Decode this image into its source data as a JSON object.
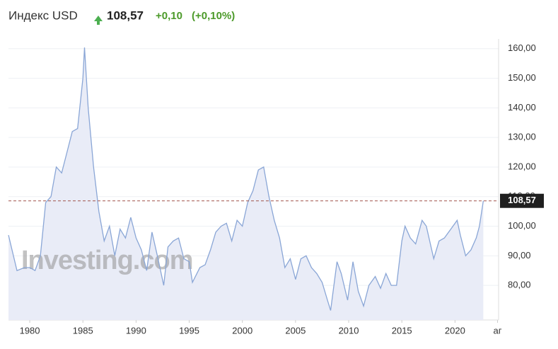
{
  "header": {
    "name": "Индекс USD",
    "price": "108,57",
    "change": "+0,10",
    "change_pct": "(+0,10%)"
  },
  "chart_data": {
    "type": "area",
    "watermark": "Investing.com",
    "color": "#8aa6d6",
    "fill": "#e9ecf7",
    "grid": true,
    "current_value": 108.57,
    "current_label": "108,57",
    "xlim": [
      1978.0,
      2024.1
    ],
    "ylim": [
      68.3,
      163.3
    ],
    "xticks": [
      1980,
      1985,
      1990,
      1995,
      2000,
      2005,
      2010,
      2015,
      2020,
      {
        "value": 2024.0,
        "label": "аг"
      }
    ],
    "yticks": [
      {
        "value": 80,
        "label": "80,00"
      },
      {
        "value": 90,
        "label": "90,00"
      },
      {
        "value": 100,
        "label": "100,00"
      },
      {
        "value": 110,
        "label": "110,00"
      },
      {
        "value": 120,
        "label": "120,00"
      },
      {
        "value": 130,
        "label": "130,00"
      },
      {
        "value": 140,
        "label": "140,00"
      },
      {
        "value": 150,
        "label": "150,00"
      },
      {
        "value": 160,
        "label": "160,00"
      }
    ],
    "x": [
      1978.0,
      1978.8,
      1979.5,
      1980.0,
      1980.5,
      1981.0,
      1981.5,
      1982.0,
      1982.5,
      1983.0,
      1983.5,
      1984.0,
      1984.5,
      1985.0,
      1985.15,
      1985.5,
      1986.0,
      1986.5,
      1987.0,
      1987.5,
      1988.0,
      1988.5,
      1989.0,
      1989.5,
      1990.0,
      1990.5,
      1991.0,
      1991.5,
      1992.0,
      1992.6,
      1993.0,
      1993.5,
      1994.0,
      1994.5,
      1995.0,
      1995.3,
      1996.0,
      1996.5,
      1997.0,
      1997.5,
      1998.0,
      1998.5,
      1999.0,
      1999.5,
      2000.0,
      2000.5,
      2001.0,
      2001.5,
      2002.0,
      2002.5,
      2003.0,
      2003.5,
      2004.0,
      2004.5,
      2005.0,
      2005.5,
      2006.0,
      2006.5,
      2007.0,
      2007.5,
      2008.0,
      2008.3,
      2008.9,
      2009.3,
      2009.9,
      2010.4,
      2010.9,
      2011.4,
      2011.9,
      2012.5,
      2013.0,
      2013.5,
      2014.0,
      2014.5,
      2015.0,
      2015.3,
      2015.8,
      2016.3,
      2016.9,
      2017.3,
      2018.0,
      2018.5,
      2019.0,
      2019.6,
      2020.2,
      2020.5,
      2021.0,
      2021.5,
      2022.0,
      2022.3,
      2022.66
    ],
    "values": [
      97,
      85,
      86,
      86,
      85,
      90,
      108,
      110,
      120,
      118,
      125,
      132,
      133,
      150,
      160.4,
      140,
      120,
      105,
      95,
      100,
      90,
      99,
      96,
      103,
      96,
      92,
      85,
      98,
      90,
      80,
      93,
      95,
      96,
      89,
      88,
      81,
      86,
      87,
      92,
      98,
      100,
      101,
      95,
      102,
      100,
      108,
      112,
      119,
      120,
      110,
      102,
      96,
      86,
      89,
      82,
      89,
      90,
      86,
      84,
      81,
      75,
      71.5,
      88,
      84,
      75,
      88,
      78,
      73,
      80,
      83,
      79,
      84,
      80,
      80,
      95,
      100,
      96,
      94,
      102,
      100,
      89,
      95,
      96,
      99,
      102,
      97,
      90,
      92,
      96,
      100,
      108.57
    ]
  }
}
